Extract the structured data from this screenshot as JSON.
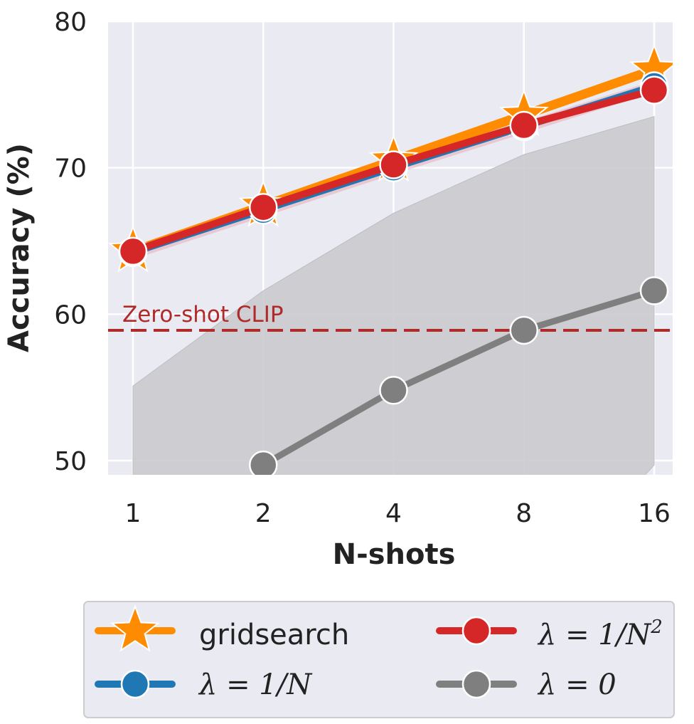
{
  "chart_data": {
    "type": "line",
    "title": "",
    "xlabel": "N-shots",
    "ylabel": "Accuracy (%)",
    "x": [
      1,
      2,
      4,
      8,
      16
    ],
    "x_tick_labels": [
      "1",
      "2",
      "4",
      "8",
      "16"
    ],
    "xscale": "log2",
    "ylim": [
      49,
      80
    ],
    "y_ticks": [
      50,
      60,
      70,
      80
    ],
    "y_tick_labels": [
      "50",
      "60",
      "70",
      "80"
    ],
    "grid": true,
    "legend_placement": "bottom, below plot",
    "series": [
      {
        "name": "gridsearch",
        "marker": "star",
        "color": "#ff8c00",
        "values": [
          64.3,
          67.4,
          70.5,
          73.6,
          76.7
        ]
      },
      {
        "name": "λ = 1/N",
        "marker": "circle",
        "color": "#1f77b4",
        "values": [
          64.2,
          67.1,
          70.0,
          72.8,
          75.6
        ]
      },
      {
        "name": "λ = 1/N²",
        "marker": "circle",
        "color": "#d62728",
        "values": [
          64.3,
          67.3,
          70.2,
          72.9,
          75.3
        ]
      },
      {
        "name": "λ = 0",
        "marker": "circle",
        "color": "#7f7f7f",
        "values": [
          null,
          49.7,
          54.8,
          58.9,
          61.6
        ],
        "band_upper": [
          55.1,
          61.6,
          66.9,
          70.9,
          73.5
        ],
        "band_lower": [
          null,
          null,
          null,
          null,
          49.7
        ]
      }
    ],
    "annotations": [
      {
        "text": "Zero-shot CLIP",
        "type": "hline",
        "y": 58.9,
        "color": "#b02a2a",
        "style": "dashed"
      }
    ]
  },
  "legend": {
    "items": [
      {
        "prefix": "",
        "label": "gridsearch"
      },
      {
        "prefix": "λ = 1/",
        "label": "N",
        "sup": "2"
      },
      {
        "prefix": "λ = 1/",
        "label": "N",
        "sup": ""
      },
      {
        "prefix": "λ = 0",
        "label": "",
        "sup": ""
      }
    ]
  },
  "colors": {
    "plot_background": "#eaeaf2",
    "grid": "#ffffff",
    "band": "#c8c8cc"
  }
}
